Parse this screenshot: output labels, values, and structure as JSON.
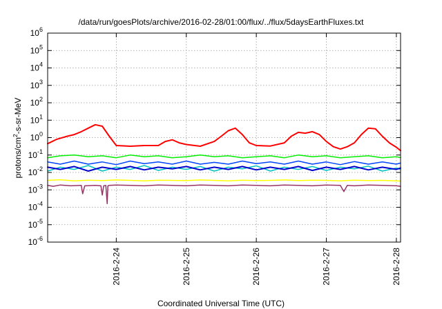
{
  "chart_data": {
    "type": "line",
    "title": "/data/run/goesPlots/archive/2016-02-28/01:00/flux/../flux/5daysEarthFluxes.txt",
    "xlabel": "Coordinated Universal Time (UTC)",
    "ylabel_parts": [
      "protons/cm",
      "2",
      "-s-sr-MeV"
    ],
    "yscale": "log",
    "ylim_exponents": [
      -6,
      6
    ],
    "y_ticks": [
      {
        "base": "10",
        "exp": "-6",
        "e": -6
      },
      {
        "base": "10",
        "exp": "-5",
        "e": -5
      },
      {
        "base": "10",
        "exp": "-4",
        "e": -4
      },
      {
        "base": "10",
        "exp": "-3",
        "e": -3
      },
      {
        "base": "10",
        "exp": "-2",
        "e": -2
      },
      {
        "base": "10",
        "exp": "-1",
        "e": -1
      },
      {
        "base": "10",
        "exp": "0",
        "e": 0
      },
      {
        "base": "10",
        "exp": "1",
        "e": 1
      },
      {
        "base": "10",
        "exp": "2",
        "e": 2
      },
      {
        "base": "10",
        "exp": "3",
        "e": 3
      },
      {
        "base": "10",
        "exp": "4",
        "e": 4
      },
      {
        "base": "10",
        "exp": "5",
        "e": 5
      },
      {
        "base": "10",
        "exp": "6",
        "e": 6
      }
    ],
    "x_range_days": [
      -0.98,
      4.06
    ],
    "x_ticks": [
      {
        "label": "2016-2-24",
        "d": 0
      },
      {
        "label": "2016-2-25",
        "d": 1
      },
      {
        "label": "2016-2-26",
        "d": 2
      },
      {
        "label": "2016-2-27",
        "d": 3
      },
      {
        "label": "2016-2-28",
        "d": 4
      }
    ],
    "grid": true,
    "series": [
      {
        "color": "#ff0000",
        "width": 2,
        "x": [
          -0.98,
          -0.85,
          -0.7,
          -0.6,
          -0.5,
          -0.4,
          -0.3,
          -0.2,
          -0.1,
          0.0,
          0.2,
          0.4,
          0.6,
          0.7,
          0.8,
          0.9,
          1.0,
          1.2,
          1.4,
          1.5,
          1.6,
          1.7,
          1.8,
          1.9,
          2.0,
          2.2,
          2.4,
          2.5,
          2.6,
          2.7,
          2.8,
          2.9,
          3.0,
          3.1,
          3.2,
          3.3,
          3.4,
          3.5,
          3.6,
          3.7,
          3.8,
          3.9,
          4.0,
          4.06
        ],
        "y": [
          0.45,
          0.8,
          1.2,
          1.5,
          2.2,
          3.5,
          5.5,
          4.5,
          1.2,
          0.35,
          0.32,
          0.35,
          0.35,
          0.6,
          0.75,
          0.5,
          0.4,
          0.32,
          0.6,
          1.2,
          2.5,
          3.5,
          1.5,
          0.5,
          0.35,
          0.33,
          0.5,
          1.2,
          2.0,
          1.8,
          2.2,
          1.5,
          0.6,
          0.3,
          0.22,
          0.3,
          0.5,
          1.5,
          3.5,
          3.2,
          1.2,
          0.5,
          0.28,
          0.18
        ]
      },
      {
        "color": "#00ee00",
        "width": 1.5,
        "x": [
          -0.98,
          -0.8,
          -0.6,
          -0.4,
          -0.2,
          0.0,
          0.2,
          0.4,
          0.6,
          0.8,
          1.0,
          1.2,
          1.4,
          1.6,
          1.8,
          2.0,
          2.2,
          2.4,
          2.6,
          2.8,
          3.0,
          3.2,
          3.4,
          3.6,
          3.8,
          4.0,
          4.06
        ],
        "y": [
          0.07,
          0.09,
          0.1,
          0.08,
          0.09,
          0.07,
          0.1,
          0.08,
          0.09,
          0.07,
          0.08,
          0.1,
          0.08,
          0.09,
          0.07,
          0.08,
          0.09,
          0.07,
          0.1,
          0.08,
          0.09,
          0.07,
          0.08,
          0.09,
          0.07,
          0.08,
          0.07
        ]
      },
      {
        "color": "#00c0c0",
        "width": 1.5,
        "x": [
          -0.98,
          -0.8,
          -0.6,
          -0.4,
          -0.2,
          0.0,
          0.2,
          0.4,
          0.6,
          0.8,
          1.0,
          1.2,
          1.4,
          1.6,
          1.8,
          2.0,
          2.2,
          2.4,
          2.6,
          2.8,
          3.0,
          3.2,
          3.4,
          3.6,
          3.8,
          4.0,
          4.06
        ],
        "y": [
          0.012,
          0.02,
          0.015,
          0.025,
          0.012,
          0.02,
          0.015,
          0.025,
          0.013,
          0.02,
          0.015,
          0.022,
          0.012,
          0.02,
          0.016,
          0.024,
          0.012,
          0.02,
          0.015,
          0.022,
          0.013,
          0.02,
          0.016,
          0.023,
          0.012,
          0.018,
          0.015
        ]
      },
      {
        "color": "#0044ff",
        "width": 1.5,
        "x": [
          -0.98,
          -0.8,
          -0.6,
          -0.4,
          -0.2,
          0.0,
          0.2,
          0.4,
          0.6,
          0.8,
          1.0,
          1.2,
          1.4,
          1.6,
          1.8,
          2.0,
          2.2,
          2.4,
          2.6,
          2.8,
          3.0,
          3.2,
          3.4,
          3.6,
          3.8,
          4.0,
          4.06
        ],
        "y": [
          0.04,
          0.03,
          0.045,
          0.03,
          0.04,
          0.028,
          0.045,
          0.032,
          0.04,
          0.03,
          0.045,
          0.03,
          0.038,
          0.03,
          0.045,
          0.032,
          0.04,
          0.03,
          0.045,
          0.03,
          0.04,
          0.028,
          0.042,
          0.03,
          0.04,
          0.03,
          0.035
        ]
      },
      {
        "color": "#0000cc",
        "width": 2,
        "x": [
          -0.98,
          -0.8,
          -0.6,
          -0.4,
          -0.2,
          0.0,
          0.2,
          0.4,
          0.6,
          0.8,
          1.0,
          1.2,
          1.4,
          1.6,
          1.8,
          2.0,
          2.2,
          2.4,
          2.6,
          2.8,
          3.0,
          3.2,
          3.4,
          3.6,
          3.8,
          4.0,
          4.06
        ],
        "y": [
          0.02,
          0.015,
          0.022,
          0.012,
          0.02,
          0.015,
          0.022,
          0.014,
          0.02,
          0.016,
          0.022,
          0.014,
          0.02,
          0.015,
          0.022,
          0.014,
          0.02,
          0.015,
          0.022,
          0.013,
          0.02,
          0.015,
          0.022,
          0.014,
          0.02,
          0.015,
          0.018
        ]
      },
      {
        "color": "#ffff00",
        "width": 1.5,
        "x": [
          -0.98,
          -0.8,
          -0.6,
          -0.4,
          -0.2,
          0.0,
          0.2,
          0.4,
          0.6,
          0.8,
          1.0,
          1.2,
          1.4,
          1.6,
          1.8,
          2.0,
          2.2,
          2.4,
          2.6,
          2.8,
          3.0,
          3.2,
          3.4,
          3.6,
          3.8,
          4.0,
          4.06
        ],
        "y": [
          0.0035,
          0.0038,
          0.0033,
          0.0036,
          0.0034,
          0.0037,
          0.0035,
          0.0033,
          0.0036,
          0.0035,
          0.0034,
          0.0037,
          0.0035,
          0.0033,
          0.0036,
          0.0034,
          0.0035,
          0.0037,
          0.0034,
          0.0036,
          0.0035,
          0.0033,
          0.0036,
          0.0034,
          0.0035,
          0.0033,
          0.0032
        ]
      },
      {
        "color": "#993366",
        "width": 1.5,
        "x": [
          -0.98,
          -0.9,
          -0.8,
          -0.65,
          -0.5,
          -0.48,
          -0.45,
          -0.3,
          -0.22,
          -0.2,
          -0.18,
          -0.15,
          -0.13,
          -0.12,
          -0.1,
          0.0,
          0.2,
          0.4,
          0.6,
          0.8,
          1.0,
          1.2,
          1.4,
          1.6,
          1.8,
          2.0,
          2.2,
          2.4,
          2.6,
          2.8,
          3.0,
          3.2,
          3.25,
          3.3,
          3.4,
          3.6,
          3.8,
          4.0,
          4.06
        ],
        "y": [
          0.0018,
          0.0016,
          0.0019,
          0.0017,
          0.0018,
          0.0006,
          0.0017,
          0.0018,
          0.0017,
          0.0005,
          0.0017,
          0.0018,
          0.00016,
          0.0017,
          0.0018,
          0.0019,
          0.0018,
          0.0017,
          0.0019,
          0.0018,
          0.0017,
          0.0019,
          0.0018,
          0.0017,
          0.0019,
          0.0018,
          0.0017,
          0.0019,
          0.0018,
          0.0017,
          0.0019,
          0.0018,
          0.0008,
          0.0018,
          0.0017,
          0.0019,
          0.0018,
          0.0017,
          0.0016
        ]
      }
    ]
  }
}
